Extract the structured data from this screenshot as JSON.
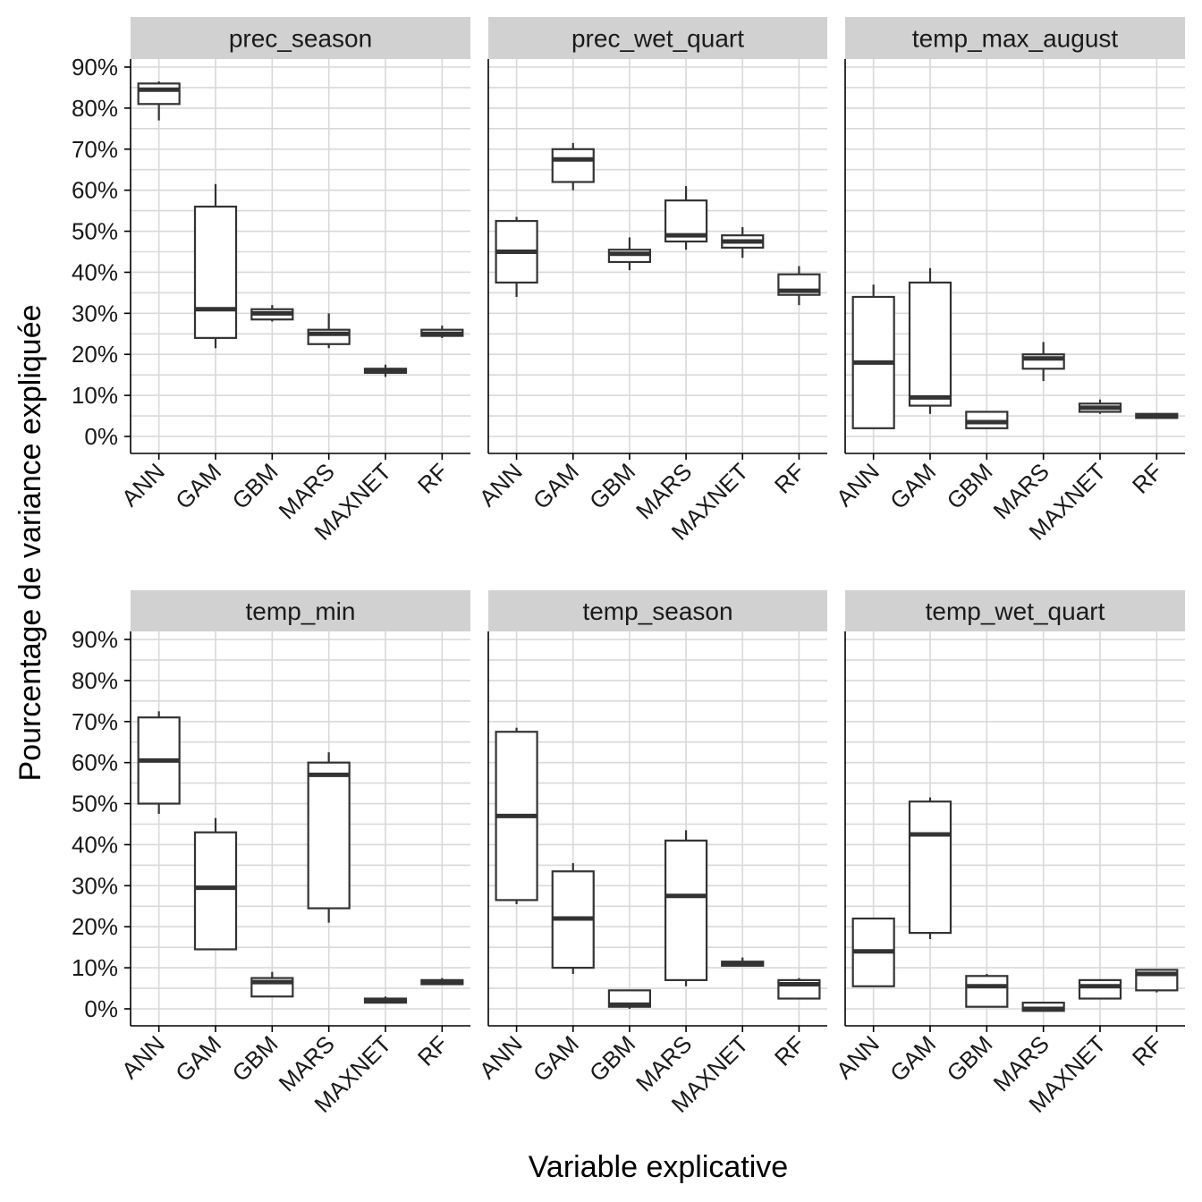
{
  "chart_data": {
    "type": "boxplot",
    "layout": "facet grid 2 rows x 3 columns",
    "xlabel": "Variable explicative",
    "ylabel": "Pourcentage de variance expliquée",
    "ylim": [
      -4,
      92
    ],
    "yticks": [
      0,
      10,
      20,
      30,
      40,
      50,
      60,
      70,
      80,
      90
    ],
    "ytick_labels": [
      "0%",
      "10%",
      "20%",
      "30%",
      "40%",
      "50%",
      "60%",
      "70%",
      "80%",
      "90%"
    ],
    "categories": [
      "ANN",
      "GAM",
      "GBM",
      "MARS",
      "MAXNET",
      "RF"
    ],
    "box_fields": [
      "min",
      "q1",
      "median",
      "q3",
      "max"
    ],
    "facets": [
      {
        "title": "prec_season",
        "boxes": [
          [
            77,
            81,
            84.5,
            86,
            86.5
          ],
          [
            21.5,
            24,
            31,
            56,
            61.5
          ],
          [
            28,
            28.5,
            30,
            31,
            32
          ],
          [
            21.5,
            22.5,
            25,
            26,
            30
          ],
          [
            14.5,
            15.5,
            16,
            16.5,
            17.5
          ],
          [
            24,
            24.5,
            25,
            26,
            27
          ]
        ]
      },
      {
        "title": "prec_wet_quart",
        "boxes": [
          [
            34,
            37.5,
            45,
            52.5,
            53.5
          ],
          [
            60,
            62,
            67.5,
            70,
            71.5
          ],
          [
            40.5,
            42.5,
            44.5,
            45.5,
            48.5
          ],
          [
            45.5,
            47.5,
            49,
            57.5,
            61
          ],
          [
            43.5,
            46,
            47.5,
            49,
            51
          ],
          [
            32,
            34.5,
            35.5,
            39.5,
            41.5
          ]
        ]
      },
      {
        "title": "temp_max_august",
        "boxes": [
          [
            2,
            2,
            18,
            34,
            37
          ],
          [
            5.5,
            7.5,
            9.5,
            37.5,
            41
          ],
          [
            2,
            2,
            3.5,
            6,
            6
          ],
          [
            13.5,
            16.5,
            19,
            20,
            23
          ],
          [
            5.5,
            6,
            7,
            8,
            9
          ],
          [
            4.5,
            4.5,
            5,
            5.5,
            5.5
          ]
        ]
      },
      {
        "title": "temp_min",
        "boxes": [
          [
            47.5,
            50,
            60.5,
            71,
            72.5
          ],
          [
            14.5,
            14.5,
            29.5,
            43,
            46.5
          ],
          [
            3,
            3,
            6.5,
            7.5,
            9
          ],
          [
            21,
            24.5,
            57,
            60,
            62.5
          ],
          [
            1.5,
            1.5,
            2,
            2.5,
            3
          ],
          [
            6,
            6,
            6.5,
            7,
            7.5
          ]
        ]
      },
      {
        "title": "temp_season",
        "boxes": [
          [
            25.5,
            26.5,
            47,
            67.5,
            68.5
          ],
          [
            8.5,
            10,
            22,
            33.5,
            35.5
          ],
          [
            0,
            0.5,
            1,
            4.5,
            4.5
          ],
          [
            5.5,
            7,
            27.5,
            41,
            43.5
          ],
          [
            10.5,
            10.5,
            11,
            11.5,
            12.5
          ],
          [
            2.5,
            2.5,
            6,
            7,
            7.5
          ]
        ]
      },
      {
        "title": "temp_wet_quart",
        "boxes": [
          [
            5.5,
            5.5,
            14,
            22,
            22
          ],
          [
            17,
            18.5,
            42.5,
            50.5,
            51.5
          ],
          [
            0.5,
            0.5,
            5.5,
            8,
            8.5
          ],
          [
            -0.5,
            -0.5,
            0,
            1.5,
            1.5
          ],
          [
            2.5,
            2.5,
            5.5,
            7,
            7
          ],
          [
            4,
            4.5,
            8.5,
            9.5,
            9.5
          ]
        ]
      }
    ]
  }
}
